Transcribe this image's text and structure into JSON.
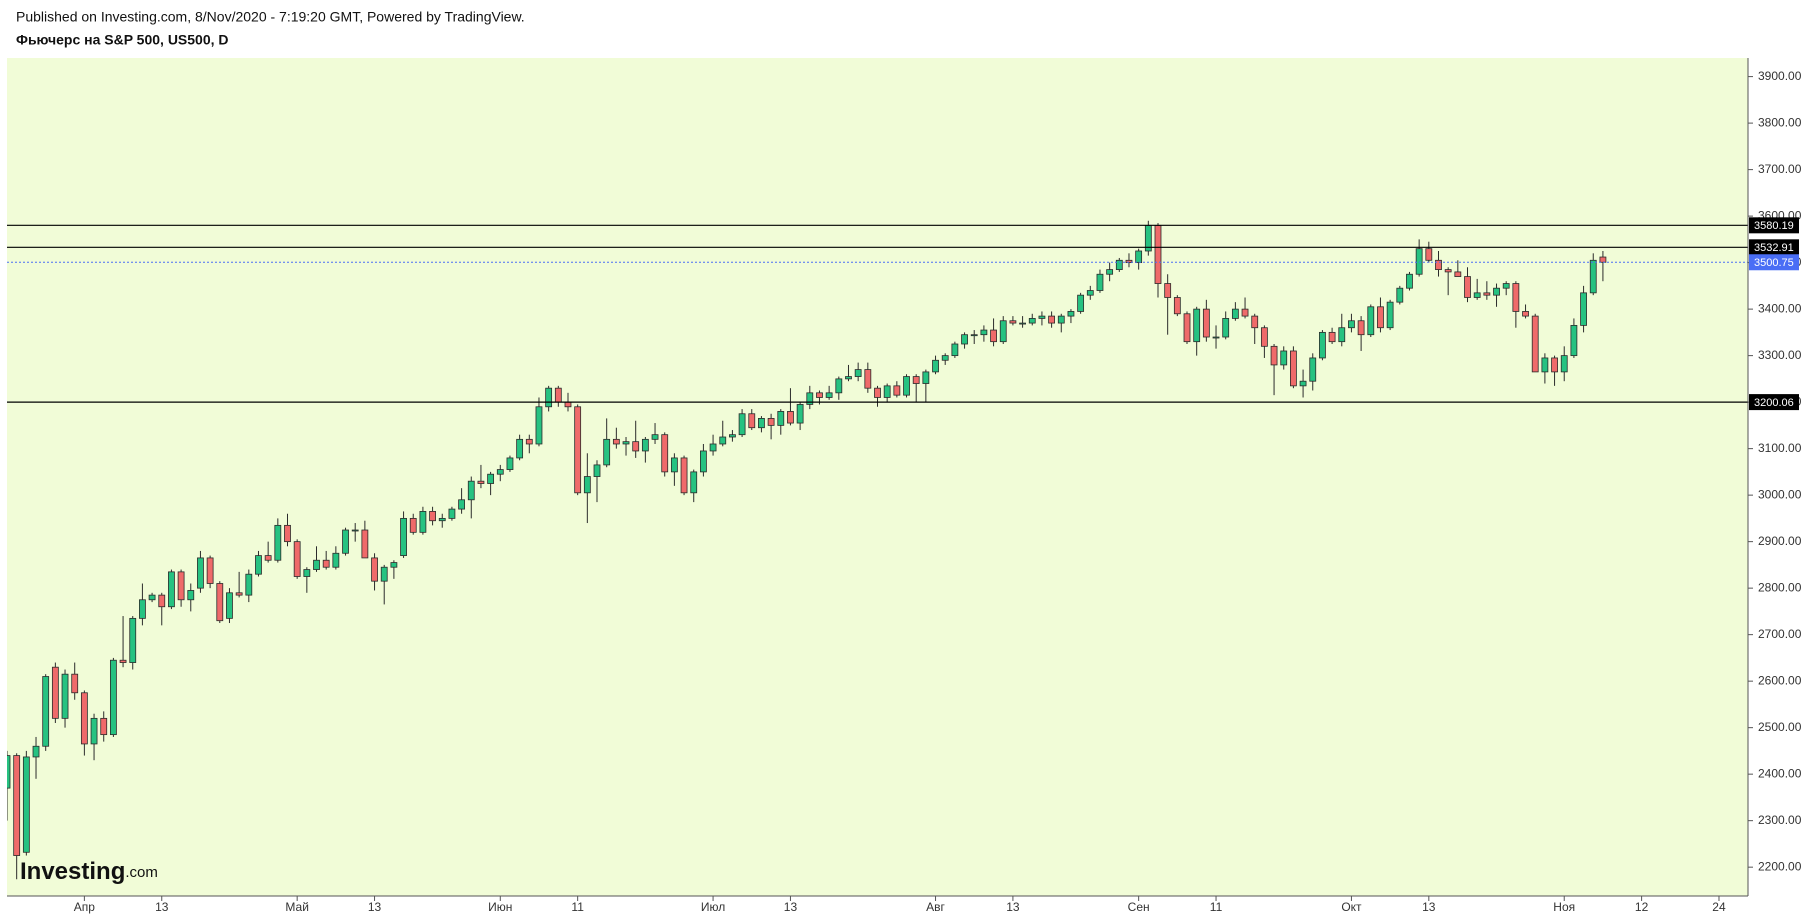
{
  "published": "Published on Investing.com, 8/Nov/2020 - 7:19:20 GMT, Powered by TradingView.",
  "logo": {
    "name": "Investing",
    "suffix": ".com"
  },
  "chart_data": {
    "type": "candlestick",
    "title": "Фьючерс на S&P 500, US500, D",
    "categories": [
      null,
      null,
      null,
      null,
      null,
      null,
      null,
      null,
      "Апр",
      null,
      null,
      null,
      null,
      null,
      null,
      null,
      "13",
      null,
      null,
      null,
      null,
      null,
      null,
      null,
      null,
      null,
      null,
      null,
      null,
      null,
      "Май",
      null,
      null,
      null,
      null,
      null,
      null,
      null,
      "13",
      null,
      null,
      null,
      null,
      null,
      null,
      null,
      null,
      null,
      null,
      null,
      null,
      "Июн",
      null,
      null,
      null,
      null,
      null,
      null,
      null,
      "11",
      null,
      null,
      null,
      null,
      null,
      null,
      null,
      null,
      null,
      null,
      null,
      null,
      null,
      "Июл",
      null,
      null,
      null,
      null,
      null,
      null,
      null,
      "13",
      null,
      null,
      null,
      null,
      null,
      null,
      null,
      null,
      null,
      null,
      null,
      null,
      null,
      null,
      "Авг",
      null,
      null,
      null,
      null,
      null,
      null,
      null,
      "13",
      null,
      null,
      null,
      null,
      null,
      null,
      null,
      null,
      null,
      null,
      null,
      null,
      "Сен",
      null,
      null,
      null,
      null,
      null,
      null,
      null,
      "11",
      null,
      null,
      null,
      null,
      null,
      null,
      null,
      null,
      null,
      null,
      null,
      null,
      null,
      "Окт",
      null,
      null,
      null,
      null,
      null,
      null,
      null,
      "13",
      null,
      null,
      null,
      null,
      null,
      null,
      null,
      null,
      null,
      null,
      null,
      null,
      null,
      "Ноя",
      null,
      null,
      null,
      null,
      null,
      null,
      null,
      "12",
      null,
      null,
      null,
      null,
      null,
      null,
      null,
      "24"
    ],
    "ohlc": [
      [
        2370,
        2450,
        2300,
        2440
      ],
      [
        2440,
        2445,
        2174,
        2225
      ],
      [
        2232,
        2450,
        2225,
        2437
      ],
      [
        2437,
        2480,
        2390,
        2460
      ],
      [
        2460,
        2615,
        2450,
        2610
      ],
      [
        2630,
        2640,
        2510,
        2520
      ],
      [
        2520,
        2625,
        2500,
        2615
      ],
      [
        2615,
        2640,
        2560,
        2575
      ],
      [
        2575,
        2580,
        2440,
        2465
      ],
      [
        2465,
        2530,
        2430,
        2520
      ],
      [
        2520,
        2535,
        2470,
        2485
      ],
      [
        2485,
        2650,
        2480,
        2645
      ],
      [
        2645,
        2740,
        2630,
        2640
      ],
      [
        2640,
        2740,
        2625,
        2735
      ],
      [
        2735,
        2810,
        2720,
        2775
      ],
      [
        2775,
        2790,
        2770,
        2785
      ],
      [
        2785,
        2790,
        2720,
        2760
      ],
      [
        2760,
        2840,
        2755,
        2835
      ],
      [
        2835,
        2840,
        2760,
        2775
      ],
      [
        2775,
        2810,
        2750,
        2795
      ],
      [
        2800,
        2880,
        2790,
        2865
      ],
      [
        2865,
        2870,
        2800,
        2810
      ],
      [
        2810,
        2815,
        2725,
        2730
      ],
      [
        2735,
        2800,
        2725,
        2790
      ],
      [
        2790,
        2835,
        2780,
        2785
      ],
      [
        2785,
        2840,
        2770,
        2830
      ],
      [
        2830,
        2880,
        2825,
        2870
      ],
      [
        2870,
        2900,
        2855,
        2860
      ],
      [
        2860,
        2950,
        2855,
        2935
      ],
      [
        2935,
        2960,
        2890,
        2900
      ],
      [
        2900,
        2905,
        2820,
        2825
      ],
      [
        2825,
        2845,
        2790,
        2840
      ],
      [
        2840,
        2890,
        2835,
        2860
      ],
      [
        2860,
        2880,
        2840,
        2845
      ],
      [
        2845,
        2890,
        2840,
        2875
      ],
      [
        2875,
        2930,
        2870,
        2925
      ],
      [
        2925,
        2940,
        2900,
        2925
      ],
      [
        2925,
        2945,
        2865,
        2865
      ],
      [
        2865,
        2875,
        2795,
        2815
      ],
      [
        2815,
        2850,
        2765,
        2845
      ],
      [
        2845,
        2860,
        2820,
        2855
      ],
      [
        2870,
        2965,
        2865,
        2950
      ],
      [
        2950,
        2960,
        2915,
        2920
      ],
      [
        2920,
        2975,
        2915,
        2965
      ],
      [
        2965,
        2975,
        2935,
        2945
      ],
      [
        2945,
        2960,
        2930,
        2950
      ],
      [
        2950,
        2975,
        2945,
        2970
      ],
      [
        2970,
        3015,
        2960,
        2990
      ],
      [
        2990,
        3040,
        2950,
        3030
      ],
      [
        3030,
        3065,
        3015,
        3025
      ],
      [
        3025,
        3050,
        3000,
        3045
      ],
      [
        3045,
        3065,
        3030,
        3055
      ],
      [
        3055,
        3085,
        3050,
        3080
      ],
      [
        3080,
        3130,
        3075,
        3120
      ],
      [
        3120,
        3130,
        3090,
        3110
      ],
      [
        3110,
        3210,
        3105,
        3190
      ],
      [
        3190,
        3235,
        3180,
        3230
      ],
      [
        3230,
        3235,
        3190,
        3200
      ],
      [
        3200,
        3220,
        3180,
        3190
      ],
      [
        3190,
        3195,
        3000,
        3005
      ],
      [
        3005,
        3090,
        2940,
        3040
      ],
      [
        3040,
        3075,
        2985,
        3065
      ],
      [
        3065,
        3165,
        3060,
        3120
      ],
      [
        3120,
        3145,
        3100,
        3110
      ],
      [
        3110,
        3125,
        3085,
        3115
      ],
      [
        3115,
        3160,
        3080,
        3095
      ],
      [
        3095,
        3125,
        3070,
        3120
      ],
      [
        3120,
        3155,
        3110,
        3130
      ],
      [
        3130,
        3135,
        3040,
        3050
      ],
      [
        3050,
        3090,
        3020,
        3080
      ],
      [
        3080,
        3085,
        3000,
        3005
      ],
      [
        3005,
        3055,
        2985,
        3050
      ],
      [
        3050,
        3110,
        3040,
        3095
      ],
      [
        3095,
        3130,
        3085,
        3110
      ],
      [
        3110,
        3160,
        3105,
        3125
      ],
      [
        3125,
        3140,
        3115,
        3130
      ],
      [
        3130,
        3185,
        3125,
        3175
      ],
      [
        3175,
        3185,
        3140,
        3145
      ],
      [
        3145,
        3170,
        3135,
        3165
      ],
      [
        3165,
        3175,
        3120,
        3150
      ],
      [
        3150,
        3185,
        3130,
        3180
      ],
      [
        3180,
        3230,
        3150,
        3155
      ],
      [
        3155,
        3200,
        3140,
        3195
      ],
      [
        3195,
        3235,
        3185,
        3220
      ],
      [
        3220,
        3225,
        3195,
        3210
      ],
      [
        3210,
        3235,
        3205,
        3220
      ],
      [
        3220,
        3255,
        3205,
        3250
      ],
      [
        3250,
        3280,
        3245,
        3255
      ],
      [
        3255,
        3285,
        3245,
        3270
      ],
      [
        3270,
        3285,
        3220,
        3230
      ],
      [
        3230,
        3235,
        3190,
        3210
      ],
      [
        3210,
        3240,
        3200,
        3235
      ],
      [
        3235,
        3245,
        3210,
        3215
      ],
      [
        3215,
        3260,
        3210,
        3255
      ],
      [
        3255,
        3260,
        3200,
        3240
      ],
      [
        3240,
        3270,
        3200,
        3265
      ],
      [
        3265,
        3300,
        3260,
        3290
      ],
      [
        3290,
        3305,
        3280,
        3300
      ],
      [
        3300,
        3330,
        3295,
        3325
      ],
      [
        3325,
        3350,
        3315,
        3345
      ],
      [
        3345,
        3355,
        3325,
        3345
      ],
      [
        3345,
        3365,
        3330,
        3355
      ],
      [
        3355,
        3380,
        3320,
        3330
      ],
      [
        3330,
        3385,
        3325,
        3375
      ],
      [
        3375,
        3385,
        3365,
        3370
      ],
      [
        3370,
        3385,
        3360,
        3370
      ],
      [
        3370,
        3390,
        3365,
        3380
      ],
      [
        3380,
        3395,
        3365,
        3385
      ],
      [
        3385,
        3395,
        3360,
        3370
      ],
      [
        3370,
        3390,
        3350,
        3385
      ],
      [
        3385,
        3400,
        3370,
        3395
      ],
      [
        3395,
        3435,
        3390,
        3430
      ],
      [
        3430,
        3450,
        3420,
        3440
      ],
      [
        3440,
        3485,
        3435,
        3475
      ],
      [
        3475,
        3500,
        3460,
        3485
      ],
      [
        3485,
        3510,
        3480,
        3505
      ],
      [
        3505,
        3520,
        3490,
        3500
      ],
      [
        3500,
        3530,
        3485,
        3525
      ],
      [
        3525,
        3590,
        3515,
        3580
      ],
      [
        3580,
        3585,
        3425,
        3455
      ],
      [
        3455,
        3475,
        3345,
        3425
      ],
      [
        3425,
        3430,
        3385,
        3390
      ],
      [
        3390,
        3395,
        3325,
        3330
      ],
      [
        3330,
        3405,
        3300,
        3400
      ],
      [
        3400,
        3420,
        3330,
        3340
      ],
      [
        3340,
        3365,
        3315,
        3340
      ],
      [
        3340,
        3395,
        3335,
        3380
      ],
      [
        3380,
        3415,
        3375,
        3400
      ],
      [
        3400,
        3425,
        3380,
        3385
      ],
      [
        3385,
        3390,
        3325,
        3360
      ],
      [
        3360,
        3365,
        3295,
        3320
      ],
      [
        3320,
        3325,
        3215,
        3280
      ],
      [
        3280,
        3320,
        3270,
        3310
      ],
      [
        3310,
        3320,
        3230,
        3235
      ],
      [
        3235,
        3270,
        3210,
        3245
      ],
      [
        3245,
        3305,
        3225,
        3295
      ],
      [
        3295,
        3355,
        3290,
        3350
      ],
      [
        3350,
        3360,
        3325,
        3330
      ],
      [
        3330,
        3390,
        3320,
        3360
      ],
      [
        3360,
        3390,
        3350,
        3375
      ],
      [
        3375,
        3385,
        3310,
        3345
      ],
      [
        3345,
        3410,
        3340,
        3405
      ],
      [
        3405,
        3425,
        3350,
        3360
      ],
      [
        3360,
        3420,
        3355,
        3415
      ],
      [
        3415,
        3450,
        3410,
        3445
      ],
      [
        3445,
        3480,
        3440,
        3475
      ],
      [
        3475,
        3550,
        3470,
        3530
      ],
      [
        3530,
        3545,
        3500,
        3505
      ],
      [
        3505,
        3525,
        3470,
        3485
      ],
      [
        3485,
        3490,
        3430,
        3480
      ],
      [
        3480,
        3505,
        3470,
        3470
      ],
      [
        3470,
        3490,
        3415,
        3425
      ],
      [
        3425,
        3465,
        3420,
        3435
      ],
      [
        3435,
        3460,
        3420,
        3430
      ],
      [
        3430,
        3455,
        3405,
        3445
      ],
      [
        3445,
        3460,
        3430,
        3455
      ],
      [
        3455,
        3460,
        3360,
        3395
      ],
      [
        3395,
        3410,
        3380,
        3385
      ],
      [
        3385,
        3390,
        3265,
        3265
      ],
      [
        3265,
        3305,
        3240,
        3295
      ],
      [
        3295,
        3300,
        3235,
        3265
      ],
      [
        3265,
        3320,
        3245,
        3300
      ],
      [
        3300,
        3380,
        3295,
        3365
      ],
      [
        3365,
        3450,
        3350,
        3435
      ],
      [
        3435,
        3520,
        3430,
        3505
      ],
      [
        3512,
        3525,
        3460,
        3500.75
      ],
      null,
      null,
      null,
      null,
      null,
      null,
      null,
      null,
      null,
      null,
      null,
      null
    ],
    "up_color": "#26c281",
    "down_color": "#ef6a6a",
    "outline_color": "#2b2b2b",
    "background": "#f1fcd7",
    "ylim": [
      2138,
      3940
    ],
    "yticks": [
      {
        "value": 2200,
        "label": "2200.00"
      },
      {
        "value": 2300,
        "label": "2300.00"
      },
      {
        "value": 2400,
        "label": "2400.00"
      },
      {
        "value": 2500,
        "label": "2500.00"
      },
      {
        "value": 2600,
        "label": "2600.00"
      },
      {
        "value": 2700,
        "label": "2700.00"
      },
      {
        "value": 2800,
        "label": "2800.00"
      },
      {
        "value": 2900,
        "label": "2900.00"
      },
      {
        "value": 3000,
        "label": "3000.00"
      },
      {
        "value": 3100,
        "label": "3100.00"
      },
      {
        "value": 3200,
        "label": "3200.00"
      },
      {
        "value": 3300,
        "label": "3300.00"
      },
      {
        "value": 3400,
        "label": "3400.00"
      },
      {
        "value": 3500,
        "label": "3500.00"
      },
      {
        "value": 3600,
        "label": "3600.00"
      },
      {
        "value": 3700,
        "label": "3700.00"
      },
      {
        "value": 3800,
        "label": "3800.00"
      },
      {
        "value": 3900,
        "label": "3900.00"
      }
    ],
    "levels": [
      {
        "value": 3580.19,
        "color": "#000000"
      },
      {
        "value": 3532.91,
        "color": "#000000"
      },
      {
        "value": 3200.06,
        "color": "#000000"
      }
    ],
    "last_price": 3500.75,
    "last_price_color": "#4a6ef5"
  }
}
